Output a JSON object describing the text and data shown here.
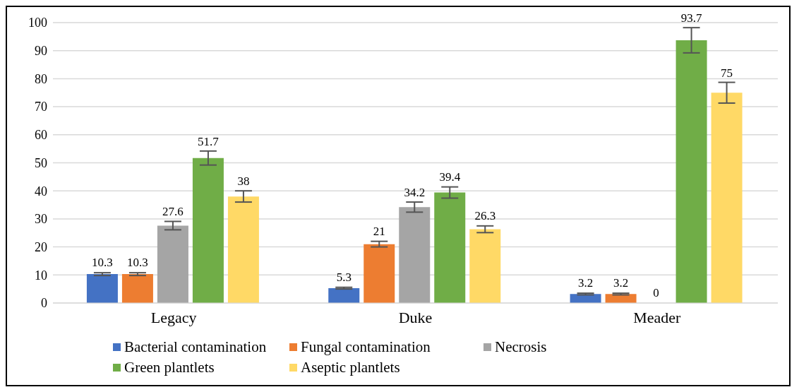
{
  "chart_data": {
    "type": "bar",
    "categories": [
      "Legacy",
      "Duke",
      "Meader"
    ],
    "series": [
      {
        "name": "Bacterial contamination",
        "color": "#4472c4",
        "values": [
          10.3,
          5.3,
          3.2
        ],
        "errors": [
          0.5,
          0.3,
          0.3
        ]
      },
      {
        "name": "Fungal contamination",
        "color": "#ed7d31",
        "values": [
          10.3,
          21,
          3.2
        ],
        "errors": [
          0.5,
          1,
          0.3
        ]
      },
      {
        "name": "Necrosis",
        "color": "#a5a5a5",
        "values": [
          27.6,
          34.2,
          0
        ],
        "errors": [
          1.5,
          1.8,
          null
        ]
      },
      {
        "name": "Green plantlets",
        "color": "#70ad47",
        "values": [
          51.7,
          39.4,
          93.7
        ],
        "errors": [
          2.5,
          2,
          4.5
        ]
      },
      {
        "name": "Aseptic plantlets",
        "color": "#ffd966",
        "values": [
          38,
          26.3,
          75
        ],
        "errors": [
          2,
          1.2,
          3.7
        ]
      }
    ],
    "ylim": [
      0,
      100
    ],
    "yticks": [
      0,
      10,
      20,
      30,
      40,
      50,
      60,
      70,
      80,
      90,
      100
    ],
    "grid": "y",
    "legend": "bottom",
    "data_labels": true
  }
}
